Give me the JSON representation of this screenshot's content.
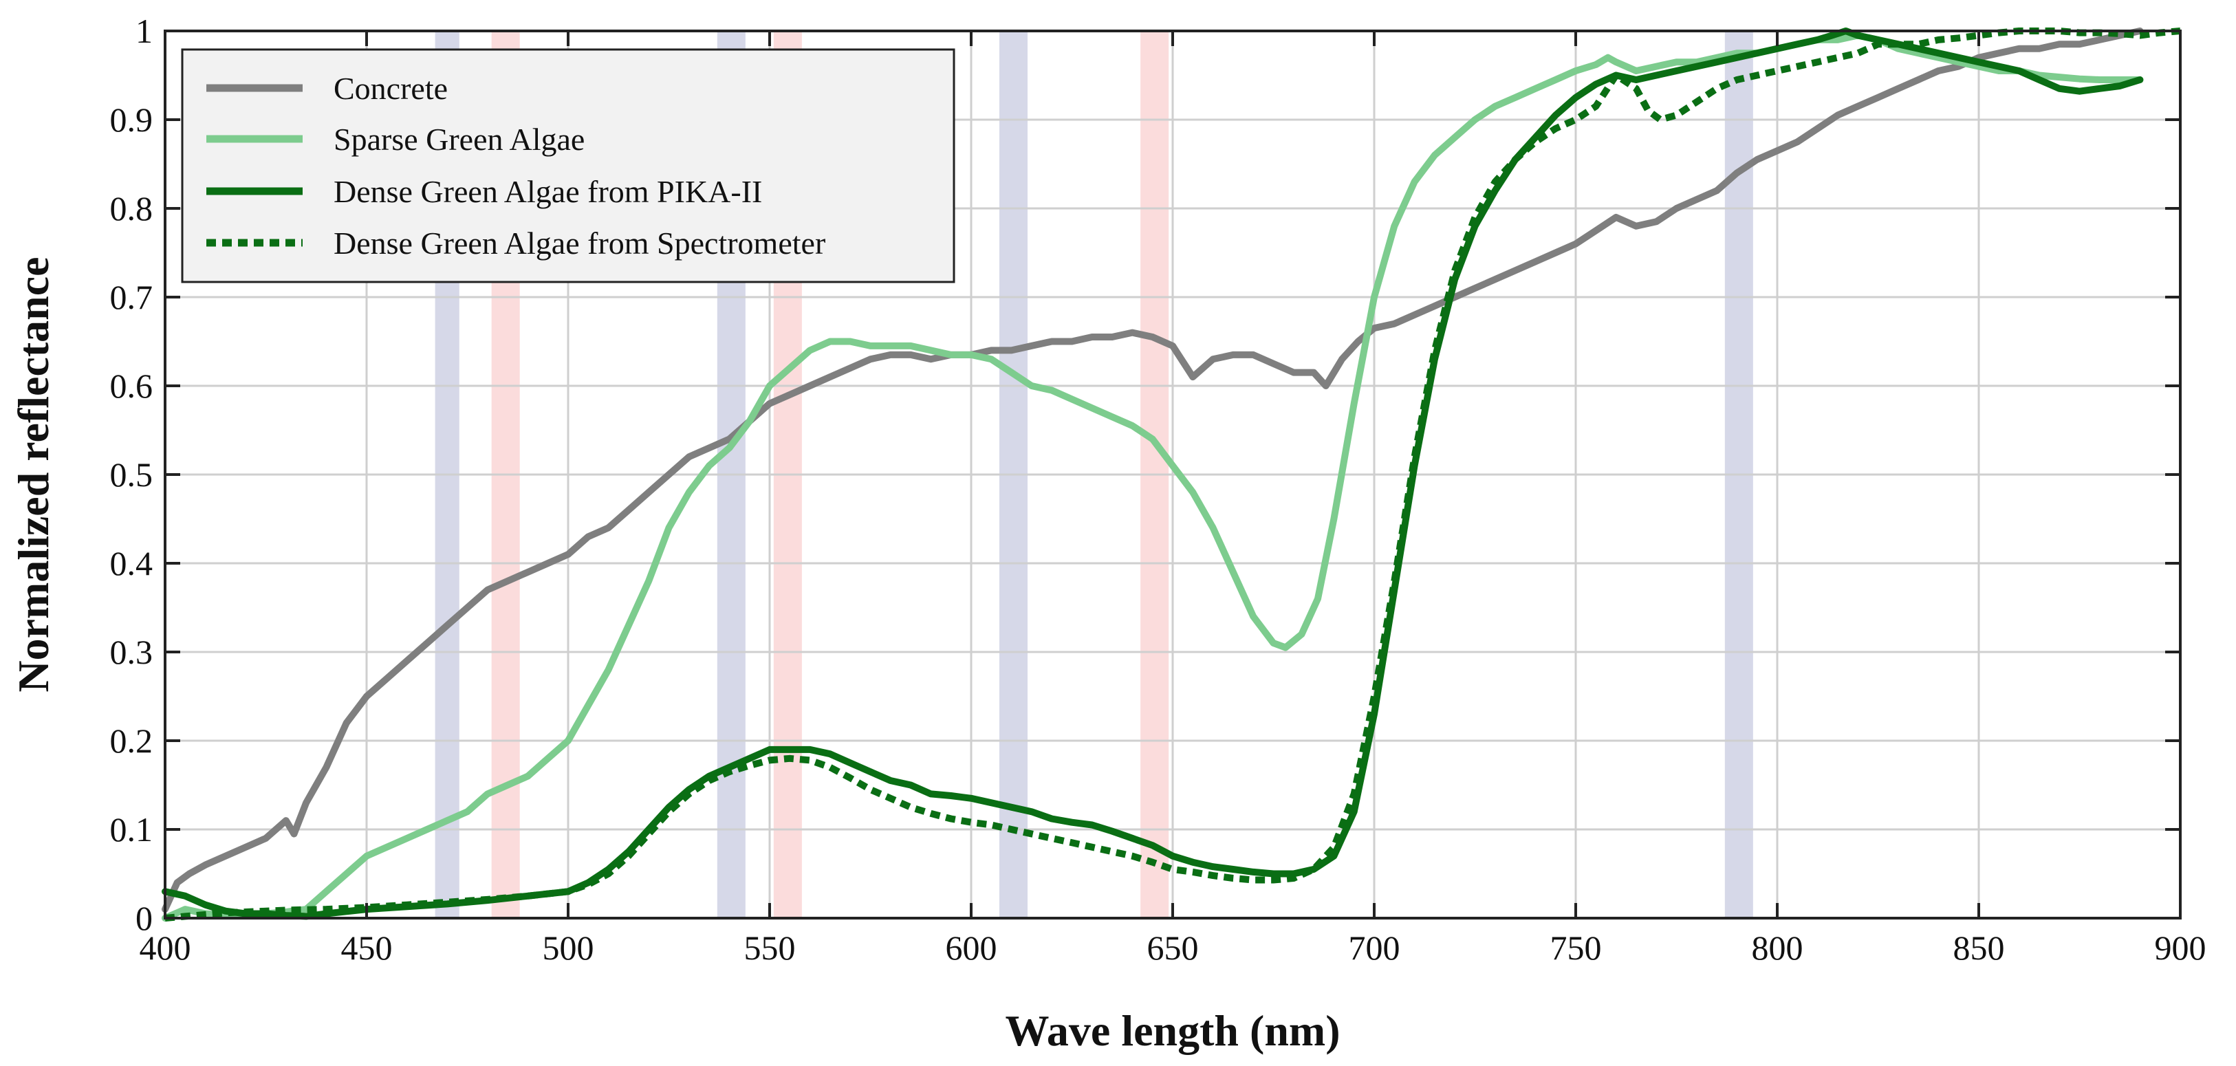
{
  "chart_data": {
    "type": "line",
    "title": "",
    "xlabel": "Wave length (nm)",
    "ylabel": "Normalized reflectance",
    "xlim": [
      400,
      900
    ],
    "ylim": [
      0,
      1
    ],
    "xticks": [
      400,
      450,
      500,
      550,
      600,
      650,
      700,
      750,
      800,
      850,
      900
    ],
    "yticks": [
      0,
      0.1,
      0.2,
      0.3,
      0.4,
      0.5,
      0.6,
      0.7,
      0.8,
      0.9,
      1
    ],
    "ytick_labels": [
      "0",
      "0.1",
      "0.2",
      "0.3",
      "0.4",
      "0.5",
      "0.6",
      "0.7",
      "0.8",
      "0.9",
      "1"
    ],
    "grid": true,
    "legend_position": "top-left",
    "bands": [
      {
        "name": "blue",
        "from": 467,
        "to": 473,
        "color": "#d6d8e8"
      },
      {
        "name": "red",
        "from": 481,
        "to": 488,
        "color": "#fbdcdc"
      },
      {
        "name": "blue",
        "from": 537,
        "to": 544,
        "color": "#d6d8e8"
      },
      {
        "name": "red",
        "from": 551,
        "to": 558,
        "color": "#fbdcdc"
      },
      {
        "name": "blue",
        "from": 607,
        "to": 614,
        "color": "#d6d8e8"
      },
      {
        "name": "red",
        "from": 642,
        "to": 649,
        "color": "#fbdcdc"
      },
      {
        "name": "blue",
        "from": 787,
        "to": 794,
        "color": "#d6d8e8"
      }
    ],
    "series": [
      {
        "name": "Concrete",
        "color": "#7f7f7f",
        "style": "solid",
        "x": [
          400,
          403,
          406,
          410,
          415,
          420,
          425,
          430,
          432,
          435,
          440,
          445,
          450,
          455,
          460,
          465,
          470,
          475,
          480,
          485,
          490,
          495,
          500,
          505,
          510,
          515,
          520,
          525,
          530,
          535,
          540,
          545,
          550,
          555,
          560,
          565,
          570,
          575,
          580,
          585,
          590,
          595,
          600,
          605,
          610,
          615,
          620,
          625,
          630,
          635,
          640,
          645,
          650,
          655,
          660,
          665,
          670,
          675,
          680,
          685,
          688,
          692,
          696,
          700,
          705,
          710,
          715,
          720,
          725,
          730,
          735,
          740,
          745,
          750,
          755,
          760,
          765,
          770,
          775,
          780,
          785,
          790,
          795,
          800,
          805,
          810,
          815,
          820,
          825,
          830,
          835,
          840,
          845,
          850,
          855,
          860,
          865,
          870,
          875,
          880,
          885,
          890
        ],
        "y": [
          0.01,
          0.04,
          0.05,
          0.06,
          0.07,
          0.08,
          0.09,
          0.11,
          0.095,
          0.13,
          0.17,
          0.22,
          0.25,
          0.27,
          0.29,
          0.31,
          0.33,
          0.35,
          0.37,
          0.38,
          0.39,
          0.4,
          0.41,
          0.43,
          0.44,
          0.46,
          0.48,
          0.5,
          0.52,
          0.53,
          0.54,
          0.56,
          0.58,
          0.59,
          0.6,
          0.61,
          0.62,
          0.63,
          0.635,
          0.635,
          0.63,
          0.635,
          0.635,
          0.64,
          0.64,
          0.645,
          0.65,
          0.65,
          0.655,
          0.655,
          0.66,
          0.655,
          0.645,
          0.61,
          0.63,
          0.635,
          0.635,
          0.625,
          0.615,
          0.615,
          0.6,
          0.63,
          0.65,
          0.665,
          0.67,
          0.68,
          0.69,
          0.7,
          0.71,
          0.72,
          0.73,
          0.74,
          0.75,
          0.76,
          0.775,
          0.79,
          0.78,
          0.785,
          0.8,
          0.81,
          0.82,
          0.84,
          0.855,
          0.865,
          0.875,
          0.89,
          0.905,
          0.915,
          0.925,
          0.935,
          0.945,
          0.955,
          0.96,
          0.97,
          0.975,
          0.98,
          0.98,
          0.985,
          0.985,
          0.99,
          0.995,
          1.0
        ]
      },
      {
        "name": "Sparse Green Algae",
        "color": "#7dcc8e",
        "style": "solid",
        "x": [
          400,
          405,
          410,
          415,
          420,
          425,
          430,
          435,
          440,
          445,
          450,
          455,
          460,
          465,
          470,
          475,
          480,
          485,
          490,
          495,
          500,
          505,
          510,
          515,
          520,
          525,
          530,
          535,
          540,
          545,
          550,
          555,
          560,
          565,
          570,
          575,
          580,
          585,
          590,
          595,
          600,
          605,
          610,
          615,
          620,
          625,
          630,
          635,
          640,
          645,
          650,
          655,
          660,
          665,
          670,
          675,
          678,
          682,
          686,
          690,
          695,
          700,
          705,
          710,
          715,
          720,
          725,
          730,
          735,
          740,
          745,
          750,
          755,
          758,
          760,
          765,
          770,
          775,
          780,
          785,
          790,
          795,
          800,
          805,
          810,
          815,
          820,
          825,
          830,
          835,
          840,
          845,
          850,
          855,
          860,
          865,
          870,
          875,
          880,
          885,
          890
        ],
        "y": [
          0.0,
          0.01,
          0.005,
          0.003,
          0.003,
          0.005,
          0.007,
          0.01,
          0.03,
          0.05,
          0.07,
          0.08,
          0.09,
          0.1,
          0.11,
          0.12,
          0.14,
          0.15,
          0.16,
          0.18,
          0.2,
          0.24,
          0.28,
          0.33,
          0.38,
          0.44,
          0.48,
          0.51,
          0.53,
          0.56,
          0.6,
          0.62,
          0.64,
          0.65,
          0.65,
          0.645,
          0.645,
          0.645,
          0.64,
          0.635,
          0.635,
          0.63,
          0.615,
          0.6,
          0.595,
          0.585,
          0.575,
          0.565,
          0.555,
          0.54,
          0.51,
          0.48,
          0.44,
          0.39,
          0.34,
          0.31,
          0.305,
          0.32,
          0.36,
          0.45,
          0.58,
          0.7,
          0.78,
          0.83,
          0.86,
          0.88,
          0.9,
          0.915,
          0.925,
          0.935,
          0.945,
          0.955,
          0.962,
          0.97,
          0.965,
          0.955,
          0.96,
          0.965,
          0.965,
          0.97,
          0.975,
          0.975,
          0.98,
          0.985,
          0.99,
          0.99,
          0.995,
          0.99,
          0.98,
          0.975,
          0.97,
          0.965,
          0.96,
          0.955,
          0.955,
          0.95,
          0.948,
          0.946,
          0.945,
          0.945,
          0.945
        ]
      },
      {
        "name": "Dense Green Algae from PIKA-II",
        "color": "#0a6e14",
        "style": "solid",
        "x": [
          400,
          405,
          410,
          415,
          420,
          425,
          430,
          435,
          440,
          450,
          460,
          470,
          480,
          490,
          500,
          505,
          510,
          515,
          520,
          525,
          530,
          535,
          540,
          545,
          550,
          555,
          560,
          565,
          570,
          575,
          580,
          585,
          590,
          595,
          600,
          605,
          610,
          615,
          620,
          625,
          630,
          635,
          640,
          645,
          650,
          655,
          660,
          665,
          670,
          675,
          680,
          685,
          690,
          695,
          700,
          705,
          710,
          715,
          720,
          725,
          730,
          735,
          740,
          745,
          750,
          755,
          760,
          765,
          770,
          775,
          780,
          785,
          790,
          795,
          800,
          805,
          810,
          815,
          817,
          820,
          825,
          830,
          835,
          840,
          845,
          850,
          855,
          860,
          865,
          870,
          875,
          880,
          885,
          890
        ],
        "y": [
          0.03,
          0.025,
          0.015,
          0.008,
          0.005,
          0.005,
          0.003,
          0.002,
          0.005,
          0.01,
          0.013,
          0.016,
          0.02,
          0.025,
          0.03,
          0.04,
          0.055,
          0.075,
          0.1,
          0.125,
          0.145,
          0.16,
          0.17,
          0.18,
          0.19,
          0.19,
          0.19,
          0.185,
          0.175,
          0.165,
          0.155,
          0.15,
          0.14,
          0.138,
          0.135,
          0.13,
          0.125,
          0.12,
          0.112,
          0.108,
          0.105,
          0.098,
          0.09,
          0.082,
          0.07,
          0.063,
          0.058,
          0.055,
          0.052,
          0.05,
          0.05,
          0.055,
          0.07,
          0.12,
          0.23,
          0.37,
          0.51,
          0.63,
          0.72,
          0.78,
          0.82,
          0.855,
          0.88,
          0.905,
          0.925,
          0.94,
          0.95,
          0.945,
          0.95,
          0.955,
          0.96,
          0.965,
          0.97,
          0.975,
          0.98,
          0.985,
          0.99,
          0.997,
          1.0,
          0.995,
          0.99,
          0.985,
          0.98,
          0.975,
          0.97,
          0.965,
          0.96,
          0.955,
          0.945,
          0.935,
          0.932,
          0.935,
          0.938,
          0.945
        ]
      },
      {
        "name": "Dense Green Algae from Spectrometer",
        "color": "#0a6e14",
        "style": "dotted",
        "x": [
          400,
          405,
          410,
          415,
          420,
          425,
          430,
          440,
          450,
          460,
          470,
          480,
          490,
          500,
          505,
          510,
          515,
          520,
          525,
          530,
          535,
          540,
          545,
          550,
          555,
          560,
          565,
          570,
          575,
          580,
          585,
          590,
          595,
          600,
          605,
          610,
          615,
          620,
          625,
          630,
          635,
          640,
          645,
          650,
          655,
          660,
          665,
          670,
          675,
          680,
          685,
          690,
          695,
          700,
          705,
          710,
          715,
          720,
          725,
          730,
          735,
          740,
          745,
          750,
          755,
          760,
          765,
          768,
          771,
          775,
          780,
          785,
          790,
          795,
          800,
          805,
          810,
          815,
          820,
          825,
          830,
          835,
          840,
          845,
          850,
          855,
          860,
          865,
          870,
          875,
          880,
          885,
          890,
          895,
          900
        ],
        "y": [
          0.0,
          0.002,
          0.004,
          0.006,
          0.007,
          0.008,
          0.009,
          0.01,
          0.012,
          0.015,
          0.018,
          0.021,
          0.025,
          0.03,
          0.038,
          0.05,
          0.07,
          0.095,
          0.12,
          0.14,
          0.155,
          0.165,
          0.172,
          0.178,
          0.18,
          0.178,
          0.17,
          0.158,
          0.145,
          0.135,
          0.125,
          0.118,
          0.112,
          0.108,
          0.105,
          0.1,
          0.095,
          0.09,
          0.085,
          0.08,
          0.075,
          0.07,
          0.063,
          0.055,
          0.052,
          0.048,
          0.045,
          0.043,
          0.043,
          0.045,
          0.055,
          0.08,
          0.14,
          0.25,
          0.38,
          0.52,
          0.64,
          0.73,
          0.79,
          0.83,
          0.855,
          0.875,
          0.89,
          0.9,
          0.915,
          0.95,
          0.935,
          0.91,
          0.9,
          0.905,
          0.92,
          0.935,
          0.945,
          0.95,
          0.955,
          0.96,
          0.965,
          0.97,
          0.975,
          0.985,
          0.985,
          0.985,
          0.99,
          0.992,
          0.995,
          0.998,
          1.0,
          1.0,
          1.0,
          0.998,
          0.998,
          0.997,
          0.995,
          0.998,
          1.0
        ]
      }
    ]
  }
}
